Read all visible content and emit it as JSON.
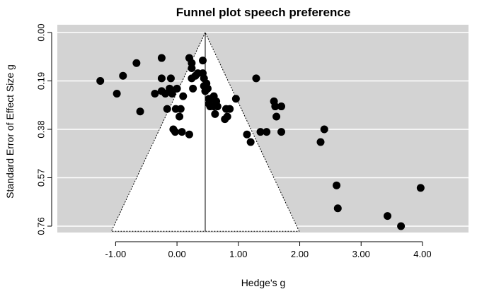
{
  "chart_data": {
    "type": "scatter",
    "title": "Funnel plot speech preference",
    "xlabel": "Hedge's g",
    "ylabel": "Standard Error of Effect Size g",
    "xlim": [
      -1.95,
      4.75
    ],
    "ylim": [
      0.76,
      0.0
    ],
    "y_reversed": true,
    "xticks": [
      -1.0,
      0.0,
      1.0,
      2.0,
      3.0,
      4.0
    ],
    "xtick_labels": [
      "-1.00",
      "0.00",
      "1.00",
      "2.00",
      "3.00",
      "4.00"
    ],
    "yticks": [
      0.0,
      0.19,
      0.38,
      0.57,
      0.76
    ],
    "ytick_labels": [
      "0.00",
      "0.19",
      "0.38",
      "0.57",
      "0.76"
    ],
    "center_estimate": 0.46,
    "funnel_limits": {
      "left_at_max_se": -1.07,
      "right_at_max_se": 1.99,
      "max_se": 0.78
    },
    "colors": {
      "panel": "#d3d3d3",
      "funnel_fill": "#ffffff",
      "grid": "#ffffff",
      "points": "#000000"
    },
    "grid": true,
    "points": [
      [
        -1.25,
        0.19
      ],
      [
        -0.98,
        0.24
      ],
      [
        -0.88,
        0.17
      ],
      [
        -0.66,
        0.12
      ],
      [
        -0.6,
        0.31
      ],
      [
        -0.36,
        0.24
      ],
      [
        -0.25,
        0.1
      ],
      [
        -0.25,
        0.18
      ],
      [
        -0.25,
        0.23
      ],
      [
        -0.19,
        0.24
      ],
      [
        -0.16,
        0.3
      ],
      [
        -0.12,
        0.22
      ],
      [
        -0.1,
        0.18
      ],
      [
        -0.08,
        0.24
      ],
      [
        -0.06,
        0.38
      ],
      [
        -0.03,
        0.39
      ],
      [
        -0.02,
        0.3
      ],
      [
        0.0,
        0.22
      ],
      [
        0.04,
        0.33
      ],
      [
        0.06,
        0.3
      ],
      [
        0.08,
        0.39
      ],
      [
        0.1,
        0.25
      ],
      [
        0.2,
        0.1
      ],
      [
        0.2,
        0.4
      ],
      [
        0.24,
        0.12
      ],
      [
        0.24,
        0.14
      ],
      [
        0.24,
        0.18
      ],
      [
        0.26,
        0.22
      ],
      [
        0.3,
        0.17
      ],
      [
        0.34,
        0.16
      ],
      [
        0.42,
        0.11
      ],
      [
        0.42,
        0.16
      ],
      [
        0.44,
        0.18
      ],
      [
        0.44,
        0.21
      ],
      [
        0.46,
        0.23
      ],
      [
        0.48,
        0.2
      ],
      [
        0.5,
        0.22
      ],
      [
        0.52,
        0.26
      ],
      [
        0.52,
        0.28
      ],
      [
        0.54,
        0.29
      ],
      [
        0.58,
        0.26
      ],
      [
        0.6,
        0.25
      ],
      [
        0.6,
        0.29
      ],
      [
        0.62,
        0.32
      ],
      [
        0.64,
        0.27
      ],
      [
        0.66,
        0.29
      ],
      [
        0.78,
        0.34
      ],
      [
        0.8,
        0.3
      ],
      [
        0.82,
        0.33
      ],
      [
        0.86,
        0.3
      ],
      [
        0.96,
        0.26
      ],
      [
        1.14,
        0.4
      ],
      [
        1.2,
        0.43
      ],
      [
        1.29,
        0.18
      ],
      [
        1.36,
        0.39
      ],
      [
        1.46,
        0.39
      ],
      [
        1.58,
        0.27
      ],
      [
        1.6,
        0.29
      ],
      [
        1.62,
        0.33
      ],
      [
        1.7,
        0.29
      ],
      [
        1.7,
        0.39
      ],
      [
        2.34,
        0.43
      ],
      [
        2.4,
        0.38
      ],
      [
        2.6,
        0.6
      ],
      [
        2.62,
        0.69
      ],
      [
        3.43,
        0.72
      ],
      [
        3.65,
        0.76
      ],
      [
        3.97,
        0.61
      ]
    ]
  }
}
